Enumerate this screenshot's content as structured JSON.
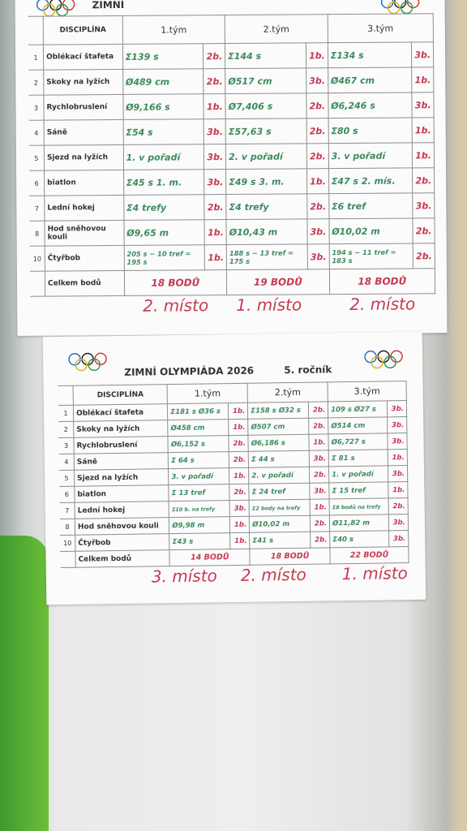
{
  "sheets": [
    {
      "title": "ZIMNÍ",
      "header": {
        "discipline": "DISCIPLÍNA",
        "teams": [
          "1.tým",
          "2.tým",
          "3.tým"
        ]
      },
      "rows": [
        {
          "num": "1",
          "discipline": "Oblékací štafeta",
          "cells": [
            {
              "result": "Σ139 s",
              "points": "2b."
            },
            {
              "result": "Σ144 s",
              "points": "1b."
            },
            {
              "result": "Σ134 s",
              "points": "3b."
            }
          ]
        },
        {
          "num": "2",
          "discipline": "Skoky na lyžích",
          "cells": [
            {
              "result": "Ø489 cm",
              "points": "2b."
            },
            {
              "result": "Ø517 cm",
              "points": "3b."
            },
            {
              "result": "Ø467 cm",
              "points": "1b."
            }
          ]
        },
        {
          "num": "3",
          "discipline": "Rychlobruslení",
          "cells": [
            {
              "result": "Ø9,166 s",
              "points": "1b."
            },
            {
              "result": "Ø7,406 s",
              "points": "2b."
            },
            {
              "result": "Ø6,246 s",
              "points": "3b."
            }
          ]
        },
        {
          "num": "4",
          "discipline": "Sáně",
          "cells": [
            {
              "result": "Σ54 s",
              "points": "3b."
            },
            {
              "result": "Σ57,63 s",
              "points": "2b."
            },
            {
              "result": "Σ80 s",
              "points": "1b."
            }
          ]
        },
        {
          "num": "5",
          "discipline": "Sjezd na lyžích",
          "cells": [
            {
              "result": "1. v pořadí",
              "points": "3b."
            },
            {
              "result": "2. v pořadí",
              "points": "2b."
            },
            {
              "result": "3. v pořadí",
              "points": "1b."
            }
          ]
        },
        {
          "num": "6",
          "discipline": "biatlon",
          "cells": [
            {
              "result": "Σ45 s 1. m.",
              "points": "3b."
            },
            {
              "result": "Σ49 s 3. m.",
              "points": "1b."
            },
            {
              "result": "Σ47 s 2. mís.",
              "points": "2b."
            }
          ]
        },
        {
          "num": "7",
          "discipline": "Lední hokej",
          "cells": [
            {
              "result": "Σ4 trefy",
              "points": "2b."
            },
            {
              "result": "Σ4 trefy",
              "points": "2b."
            },
            {
              "result": "Σ6 tref",
              "points": "3b."
            }
          ]
        },
        {
          "num": "8",
          "discipline": "Hod sněhovou kouli",
          "cells": [
            {
              "result": "Ø9,65 m",
              "points": "1b."
            },
            {
              "result": "Ø10,43 m",
              "points": "3b."
            },
            {
              "result": "Ø10,02 m",
              "points": "2b."
            }
          ]
        },
        {
          "num": "10",
          "discipline": "Čtyřbob",
          "cells": [
            {
              "result": "205 s − 10 tref = 195 s",
              "points": "1b."
            },
            {
              "result": "188 s − 13 tref = 175 s",
              "points": "3b."
            },
            {
              "result": "194 s − 11 tref = 183 s",
              "points": "2b."
            }
          ]
        }
      ],
      "total": {
        "label": "Celkem bodů",
        "values": [
          "18 BODŮ",
          "19 BODŮ",
          "18 BODŮ"
        ]
      },
      "places": [
        "2. místo",
        "1. místo",
        "2. místo"
      ]
    },
    {
      "title": "ZIMNÍ OLYMPIÁDA 2026",
      "edition": "5. ročník",
      "header": {
        "discipline": "DISCIPLÍNA",
        "teams": [
          "1.tým",
          "2.tým",
          "3.tým"
        ]
      },
      "rows": [
        {
          "num": "1",
          "discipline": "Oblékací štafeta",
          "cells": [
            {
              "result": "Σ181 s Ø36 s",
              "points": "1b."
            },
            {
              "result": "Σ158 s Ø32 s",
              "points": "2b."
            },
            {
              "result": "109 s Ø27 s",
              "points": "3b."
            }
          ]
        },
        {
          "num": "2",
          "discipline": "Skoky na lyžích",
          "cells": [
            {
              "result": "Ø458 cm",
              "points": "1b."
            },
            {
              "result": "Ø507 cm",
              "points": "2b."
            },
            {
              "result": "Ø514 cm",
              "points": "3b."
            }
          ]
        },
        {
          "num": "3",
          "discipline": "Rychlobruslení",
          "cells": [
            {
              "result": "Ø6,152 s",
              "points": "2b."
            },
            {
              "result": "Ø6,186 s",
              "points": "1b."
            },
            {
              "result": "Ø6,727 s",
              "points": "3b."
            }
          ]
        },
        {
          "num": "4",
          "discipline": "Sáně",
          "cells": [
            {
              "result": "Σ 64 s",
              "points": "2b."
            },
            {
              "result": "Σ 44 s",
              "points": "3b."
            },
            {
              "result": "Σ 81 s",
              "points": "1b."
            }
          ]
        },
        {
          "num": "5",
          "discipline": "Sjezd na lyžích",
          "cells": [
            {
              "result": "3. v pořadí",
              "points": "1b."
            },
            {
              "result": "2. v pořadí",
              "points": "2b."
            },
            {
              "result": "1. v pořadí",
              "points": "3b."
            }
          ]
        },
        {
          "num": "6",
          "discipline": "biatlon",
          "cells": [
            {
              "result": "Σ 13 tref",
              "points": "2b."
            },
            {
              "result": "Σ 24 tref",
              "points": "3b."
            },
            {
              "result": "Σ 15 tref",
              "points": "1b."
            }
          ]
        },
        {
          "num": "7",
          "discipline": "Lední hokej",
          "cells": [
            {
              "result": "Σ10 b. na trefy",
              "points": "3b."
            },
            {
              "result": "Σ2 body na trefy",
              "points": "1b."
            },
            {
              "result": "Σ8 bodů na trefy",
              "points": "2b."
            }
          ]
        },
        {
          "num": "8",
          "discipline": "Hod sněhovou kouli",
          "cells": [
            {
              "result": "Ø9,98 m",
              "points": "1b."
            },
            {
              "result": "Ø10,02 m",
              "points": "2b."
            },
            {
              "result": "Ø11,82 m",
              "points": "3b."
            }
          ]
        },
        {
          "num": "10",
          "discipline": "Čtyřbob",
          "cells": [
            {
              "result": "Σ43 s",
              "points": "1b."
            },
            {
              "result": "Σ41 s",
              "points": "2b."
            },
            {
              "result": "Σ40 s",
              "points": "3b."
            }
          ]
        }
      ],
      "total": {
        "label": "Celkem bodů",
        "values": [
          "14 BODŮ",
          "18 BODŮ",
          "22 BODŮ"
        ]
      },
      "places": [
        "3. místo",
        "2. místo",
        "1. místo"
      ]
    }
  ]
}
